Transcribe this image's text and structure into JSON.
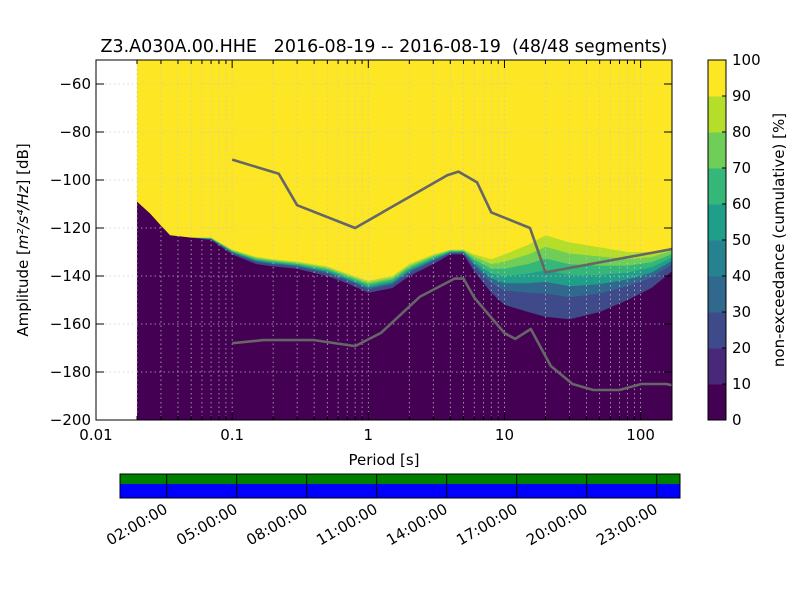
{
  "chart_data": [
    {
      "type": "heatmap",
      "title": "Z3.A030A.00.HHE   2016-08-19 -- 2016-08-19  (48/48 segments)",
      "xlabel": "Period [s]",
      "ylabel_prefix": "Amplitude [",
      "ylabel_math": "m²/s⁴/Hz",
      "ylabel_suffix": "] [dB]",
      "xscale": "log",
      "xlim": [
        0.01,
        170
      ],
      "ylim": [
        -200,
        -50
      ],
      "grid": true,
      "x_ticks": [
        0.01,
        0.1,
        1,
        10,
        100
      ],
      "x_tick_labels": [
        "0.01",
        "0.1",
        "1",
        "10",
        "100"
      ],
      "y_ticks": [
        -60,
        -80,
        -100,
        -120,
        -140,
        -160,
        -180,
        -200
      ],
      "y_tick_labels": [
        "−60",
        "−80",
        "−100",
        "−120",
        "−140",
        "−160",
        "−180",
        "−200"
      ],
      "colors": {
        "background_yellow": "#fde725",
        "low_purple": "#440154",
        "noise_model_line": "#666666"
      },
      "data_start_period": 0.02,
      "density_boundary": {
        "x": [
          0.02,
          0.025,
          0.03,
          0.035,
          0.05,
          0.07,
          0.1,
          0.15,
          0.2,
          0.3,
          0.5,
          0.7,
          1.0,
          1.5,
          2.0,
          3.0,
          4.0,
          5.0,
          6.0,
          8.0,
          10,
          15,
          20,
          30,
          50,
          80,
          120,
          170
        ],
        "y_lower": [
          -109,
          -114,
          -119,
          -123,
          -124,
          -125,
          -131,
          -135,
          -136,
          -137,
          -140,
          -143,
          -147,
          -145,
          -140,
          -135,
          -131,
          -131,
          -138,
          -147,
          -152,
          -155,
          -157,
          -158,
          -155,
          -150,
          -145,
          -138
        ],
        "y_upper": [
          -109,
          -114,
          -119,
          -123,
          -124,
          -124,
          -129,
          -132,
          -133,
          -134,
          -136,
          -139,
          -142,
          -140,
          -135,
          -131,
          -129,
          -129,
          -131,
          -133,
          -131,
          -127,
          -123,
          -126,
          -128,
          -130,
          -130,
          -128
        ]
      },
      "series": [
        {
          "name": "NHNM",
          "x": [
            0.1,
            0.22,
            0.3,
            0.8,
            3.8,
            4.6,
            6.3,
            8.0,
            15.4,
            20.0,
            170
          ],
          "y": [
            -91.5,
            -97.4,
            -110.5,
            -120.0,
            -98.0,
            -96.5,
            -101.0,
            -113.5,
            -120.0,
            -138.5,
            -128.8
          ]
        },
        {
          "name": "NLNM",
          "x": [
            0.1,
            0.17,
            0.4,
            0.8,
            1.24,
            2.4,
            4.3,
            5.0,
            6.0,
            10.0,
            12.0,
            15.6,
            21.9,
            31.6,
            45.0,
            70.0,
            101.0,
            154.0,
            170
          ],
          "y": [
            -168.0,
            -166.7,
            -166.7,
            -169.2,
            -163.7,
            -148.6,
            -141.1,
            -141.1,
            -149.0,
            -163.8,
            -166.2,
            -162.1,
            -177.5,
            -185.0,
            -187.5,
            -187.5,
            -185.0,
            -185.0,
            -185.5
          ]
        }
      ]
    },
    {
      "type": "heatmap",
      "colorbar_label": "non-exceedance (cumulative) [%]",
      "range": [
        0,
        100
      ],
      "ticks": [
        0,
        10,
        20,
        30,
        40,
        50,
        60,
        70,
        80,
        90,
        100
      ],
      "tick_labels": [
        "0",
        "10",
        "20",
        "30",
        "40",
        "50",
        "60",
        "70",
        "80",
        "90",
        "100"
      ],
      "colormap_stops": [
        "#440154",
        "#482878",
        "#3e4a89",
        "#31688e",
        "#26828e",
        "#1f9e89",
        "#35b779",
        "#6ece58",
        "#b5de2b",
        "#fde725"
      ]
    },
    {
      "type": "bar",
      "description_free": true,
      "x_tick_labels": [
        "02:00:00",
        "05:00:00",
        "08:00:00",
        "11:00:00",
        "14:00:00",
        "17:00:00",
        "20:00:00",
        "23:00:00"
      ],
      "upper_band_color": "#008000",
      "lower_band_color": "#0000ff",
      "segments": 48
    }
  ]
}
